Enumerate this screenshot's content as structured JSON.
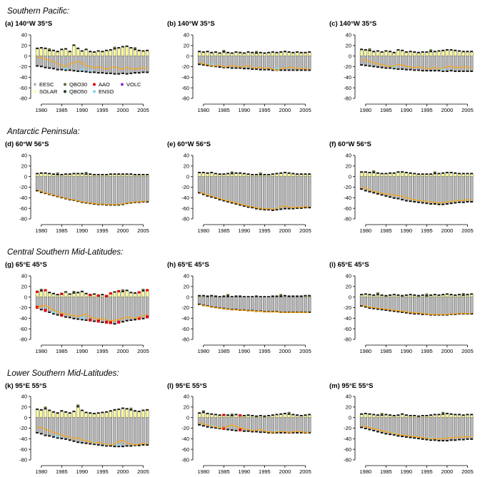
{
  "colors": {
    "EESC": "#b8b8b8",
    "SOLAR": "#ffffa0",
    "QBO30": "#556b2f",
    "QBO50": "#1a3a1a",
    "AAO": "#e00000",
    "ENSO": "#7fd4e6",
    "VOLC": "#8a2be2",
    "cap": "#111111",
    "trend_line": "#ffa500"
  },
  "legend": [
    "EESC",
    "SOLAR",
    "QBO30",
    "QBO50",
    "AAO",
    "ENSO",
    "VOLC"
  ],
  "rows": [
    {
      "title": "Southern Pacific:"
    },
    {
      "title": "Antarctic Peninsula:"
    },
    {
      "title": "Central Southern Mid-Latitudes:"
    },
    {
      "title": "Lower Southern Mid-Latitudes:"
    }
  ],
  "chart_data": [
    {
      "type": "bar",
      "title": "(a) 140°W 35°S",
      "ylim": [
        -80,
        40
      ],
      "x": [
        1979,
        2006
      ],
      "top": [
        16,
        17,
        16,
        12,
        12,
        10,
        14,
        15,
        10,
        22,
        16,
        11,
        14,
        10,
        9,
        11,
        10,
        12,
        13,
        15,
        17,
        19,
        20,
        17,
        14,
        12,
        11,
        12
      ],
      "bottom": [
        -20,
        -21,
        -23,
        -24,
        -25,
        -27,
        -27,
        -28,
        -28,
        -29,
        -30,
        -30,
        -31,
        -32,
        -32,
        -33,
        -33,
        -34,
        -34,
        -35,
        -35,
        -34,
        -35,
        -34,
        -33,
        -33,
        -32,
        -32
      ],
      "orange": [
        -2,
        -3,
        -5,
        -8,
        -10,
        -15,
        -18,
        -20,
        -15,
        -12,
        -10,
        -13,
        -18,
        -20,
        -22,
        -20,
        -22,
        -25,
        -22,
        -20,
        -23,
        -25,
        -21,
        -24,
        -25,
        -23,
        -22,
        -24
      ],
      "extras": {
        "ENSO": [
          7,
          11,
          13
        ],
        "AAO": [],
        "QBO": [
          3,
          19,
          24
        ]
      }
    },
    {
      "type": "bar",
      "title": "(b) 140°W 35°S",
      "ylim": [
        -80,
        40
      ],
      "x": [
        1979,
        2006
      ],
      "top": [
        10,
        9,
        10,
        8,
        9,
        7,
        9,
        8,
        7,
        9,
        8,
        7,
        9,
        8,
        7,
        8,
        7,
        8,
        9,
        8,
        9,
        10,
        9,
        8,
        9,
        8,
        8,
        9
      ],
      "bottom": [
        -17,
        -18,
        -19,
        -20,
        -21,
        -22,
        -23,
        -23,
        -24,
        -24,
        -24,
        -25,
        -25,
        -26,
        -26,
        -27,
        -27,
        -27,
        -28,
        -28,
        -28,
        -28,
        -28,
        -28,
        -28,
        -28,
        -28,
        -28
      ],
      "orange": [
        -12,
        -15,
        -16,
        -18,
        -19,
        -17,
        -21,
        -20,
        -18,
        -19,
        -21,
        -20,
        -18,
        -22,
        -23,
        -21,
        -24,
        -22,
        -25,
        -27,
        -24,
        -23,
        -21,
        -22,
        -24,
        -23,
        -24,
        -25
      ],
      "extras": {
        "ENSO": [
          3,
          19
        ],
        "AAO": [],
        "QBO": [
          6,
          14
        ]
      }
    },
    {
      "type": "bar",
      "title": "(c) 140°W 35°S",
      "ylim": [
        -80,
        40
      ],
      "x": [
        1979,
        2006
      ],
      "top": [
        14,
        13,
        12,
        10,
        11,
        9,
        11,
        10,
        8,
        13,
        12,
        9,
        10,
        9,
        8,
        9,
        9,
        10,
        10,
        11,
        12,
        13,
        13,
        12,
        11,
        10,
        10,
        10
      ],
      "bottom": [
        -18,
        -19,
        -20,
        -21,
        -22,
        -23,
        -24,
        -24,
        -25,
        -26,
        -26,
        -27,
        -27,
        -28,
        -28,
        -29,
        -29,
        -29,
        -29,
        -29,
        -30,
        -30,
        -29,
        -30,
        -30,
        -30,
        -30,
        -30
      ],
      "orange": [
        -5,
        -8,
        -10,
        -12,
        -15,
        -16,
        -18,
        -20,
        -18,
        -16,
        -17,
        -19,
        -21,
        -22,
        -20,
        -22,
        -24,
        -23,
        -21,
        -25,
        -22,
        -20,
        -19,
        -21,
        -22,
        -20,
        -21,
        -23
      ],
      "extras": {
        "ENSO": [
          8,
          20
        ],
        "AAO": [],
        "QBO": [
          2,
          17
        ]
      }
    },
    {
      "type": "bar",
      "title": "(d) 60°W 56°S",
      "ylim": [
        -80,
        40
      ],
      "x": [
        1979,
        2006
      ],
      "top": [
        7,
        8,
        8,
        7,
        6,
        5,
        5,
        6,
        6,
        7,
        7,
        7,
        6,
        6,
        5,
        5,
        5,
        5,
        6,
        6,
        6,
        6,
        6,
        6,
        5,
        5,
        5,
        5
      ],
      "bottom": [
        -28,
        -31,
        -33,
        -35,
        -37,
        -39,
        -41,
        -43,
        -45,
        -46,
        -48,
        -50,
        -51,
        -52,
        -53,
        -54,
        -54,
        -55,
        -55,
        -55,
        -55,
        -54,
        -52,
        -51,
        -50,
        -50,
        -49,
        -49
      ],
      "orange": [
        -25,
        -28,
        -31,
        -33,
        -35,
        -37,
        -39,
        -41,
        -43,
        -44,
        -46,
        -48,
        -49,
        -50,
        -51,
        -52,
        -52,
        -53,
        -53,
        -53,
        -53,
        -52,
        -50,
        -49,
        -48,
        -48,
        -47,
        -47
      ],
      "extras": {
        "ENSO": [],
        "AAO": [],
        "QBO": [
          5,
          12
        ]
      }
    },
    {
      "type": "bar",
      "title": "(e) 60°W 56°S",
      "ylim": [
        -80,
        40
      ],
      "x": [
        1979,
        2006
      ],
      "top": [
        9,
        9,
        8,
        9,
        7,
        6,
        6,
        7,
        7,
        8,
        8,
        7,
        6,
        5,
        5,
        5,
        5,
        5,
        6,
        7,
        8,
        9,
        8,
        7,
        6,
        6,
        6,
        6
      ],
      "bottom": [
        -32,
        -35,
        -38,
        -40,
        -42,
        -45,
        -47,
        -49,
        -51,
        -53,
        -55,
        -57,
        -59,
        -60,
        -62,
        -63,
        -64,
        -64,
        -65,
        -64,
        -63,
        -62,
        -62,
        -62,
        -61,
        -61,
        -60,
        -60
      ],
      "orange": [
        -29,
        -32,
        -35,
        -37,
        -39,
        -42,
        -44,
        -46,
        -48,
        -50,
        -52,
        -54,
        -56,
        -57,
        -59,
        -60,
        -61,
        -61,
        -62,
        -60,
        -57,
        -55,
        -58,
        -59,
        -58,
        -58,
        -57,
        -57
      ],
      "extras": {
        "ENSO": [
          19
        ],
        "AAO": [],
        "QBO": [
          8,
          15
        ]
      }
    },
    {
      "type": "bar",
      "title": "(f) 60°W 56°S",
      "ylim": [
        -80,
        40
      ],
      "x": [
        1979,
        2006
      ],
      "top": [
        10,
        10,
        9,
        9,
        8,
        7,
        7,
        8,
        8,
        10,
        10,
        9,
        8,
        7,
        6,
        6,
        6,
        6,
        7,
        7,
        8,
        9,
        9,
        8,
        7,
        7,
        7,
        7
      ],
      "bottom": [
        -25,
        -28,
        -30,
        -32,
        -34,
        -36,
        -38,
        -40,
        -42,
        -43,
        -45,
        -47,
        -48,
        -49,
        -50,
        -51,
        -52,
        -53,
        -53,
        -54,
        -54,
        -53,
        -52,
        -51,
        -50,
        -50,
        -49,
        -49
      ],
      "orange": [
        -20,
        -22,
        -25,
        -28,
        -30,
        -32,
        -33,
        -34,
        -35,
        -36,
        -37,
        -40,
        -42,
        -44,
        -45,
        -46,
        -47,
        -48,
        -49,
        -50,
        -49,
        -48,
        -47,
        -46,
        -45,
        -45,
        -44,
        -44
      ],
      "extras": {
        "ENSO": [],
        "AAO": [],
        "QBO": [
          3,
          18
        ]
      }
    },
    {
      "type": "bar",
      "title": "(g) 65°E 45°S",
      "ylim": [
        -80,
        40
      ],
      "x": [
        1979,
        2006
      ],
      "top": [
        12,
        13,
        15,
        10,
        8,
        6,
        8,
        11,
        7,
        9,
        10,
        12,
        8,
        6,
        7,
        5,
        6,
        4,
        9,
        11,
        13,
        12,
        14,
        10,
        9,
        11,
        13,
        15
      ],
      "bottom": [
        -22,
        -25,
        -28,
        -30,
        -33,
        -35,
        -37,
        -39,
        -40,
        -42,
        -43,
        -44,
        -45,
        -46,
        -47,
        -48,
        -49,
        -50,
        -51,
        -52,
        -50,
        -48,
        -46,
        -45,
        -44,
        -43,
        -42,
        -40
      ],
      "orange": [
        -20,
        -17,
        -15,
        -20,
        -25,
        -28,
        -30,
        -32,
        -34,
        -35,
        -36,
        -34,
        -32,
        -38,
        -40,
        -42,
        -41,
        -43,
        -45,
        -44,
        -42,
        -40,
        -38,
        -39,
        -40,
        -38,
        -35,
        -33
      ],
      "extras": {
        "ENSO": [
          4,
          11,
          17
        ],
        "AAO": [
          0,
          2,
          6,
          13,
          15,
          17,
          18,
          20,
          25,
          27
        ],
        "QBO": [
          1,
          9,
          21,
          26
        ]
      }
    },
    {
      "type": "bar",
      "title": "(h) 65°E 45°S",
      "ylim": [
        -80,
        40
      ],
      "x": [
        1979,
        2006
      ],
      "top": [
        4,
        4,
        3,
        4,
        3,
        2,
        3,
        3,
        2,
        3,
        3,
        2,
        2,
        2,
        3,
        2,
        2,
        2,
        3,
        3,
        3,
        4,
        3,
        3,
        3,
        3,
        4,
        4
      ],
      "bottom": [
        -15,
        -17,
        -18,
        -20,
        -21,
        -22,
        -23,
        -24,
        -25,
        -25,
        -26,
        -26,
        -27,
        -27,
        -28,
        -28,
        -29,
        -29,
        -29,
        -29,
        -30,
        -30,
        -30,
        -30,
        -30,
        -30,
        -30,
        -30
      ],
      "orange": [
        -14,
        -16,
        -17,
        -19,
        -20,
        -21,
        -22,
        -23,
        -24,
        -24,
        -25,
        -25,
        -26,
        -26,
        -27,
        -27,
        -28,
        -28,
        -28,
        -28,
        -29,
        -29,
        -29,
        -29,
        -29,
        -29,
        -29,
        -29
      ],
      "extras": {
        "ENSO": [],
        "AAO": [],
        "QBO": [
          7,
          20
        ]
      }
    },
    {
      "type": "bar",
      "title": "(i) 65°E 45°S",
      "ylim": [
        -80,
        40
      ],
      "x": [
        1979,
        2006
      ],
      "top": [
        6,
        7,
        6,
        5,
        6,
        5,
        4,
        5,
        6,
        5,
        4,
        5,
        6,
        5,
        4,
        5,
        4,
        5,
        6,
        5,
        6,
        7,
        6,
        5,
        6,
        5,
        6,
        7
      ],
      "bottom": [
        -18,
        -20,
        -22,
        -23,
        -24,
        -25,
        -26,
        -27,
        -28,
        -29,
        -30,
        -31,
        -32,
        -33,
        -33,
        -34,
        -34,
        -35,
        -35,
        -35,
        -35,
        -35,
        -34,
        -34,
        -33,
        -33,
        -33,
        -33
      ],
      "orange": [
        -15,
        -17,
        -19,
        -20,
        -21,
        -22,
        -23,
        -24,
        -25,
        -26,
        -27,
        -28,
        -29,
        -30,
        -30,
        -31,
        -32,
        -33,
        -33,
        -33,
        -33,
        -33,
        -32,
        -32,
        -31,
        -31,
        -31,
        -31
      ],
      "extras": {
        "ENSO": [],
        "AAO": [],
        "QBO": [
          4,
          16,
          25
        ]
      }
    },
    {
      "type": "bar",
      "title": "(k) 95°E 55°S",
      "ylim": [
        -80,
        40
      ],
      "x": [
        1979,
        2006
      ],
      "top": [
        17,
        16,
        18,
        15,
        12,
        10,
        14,
        12,
        10,
        13,
        22,
        15,
        11,
        10,
        9,
        10,
        11,
        12,
        14,
        16,
        17,
        19,
        18,
        16,
        14,
        13,
        15,
        16
      ],
      "bottom": [
        -30,
        -32,
        -35,
        -36,
        -38,
        -40,
        -41,
        -42,
        -44,
        -46,
        -48,
        -49,
        -50,
        -51,
        -52,
        -53,
        -54,
        -55,
        -55,
        -56,
        -56,
        -56,
        -55,
        -55,
        -54,
        -54,
        -53,
        -53
      ],
      "orange": [
        -20,
        -18,
        -22,
        -25,
        -28,
        -30,
        -33,
        -35,
        -37,
        -40,
        -38,
        -42,
        -44,
        -46,
        -48,
        -47,
        -49,
        -50,
        -52,
        -50,
        -45,
        -43,
        -48,
        -50,
        -52,
        -50,
        -49,
        -50
      ],
      "extras": {
        "ENSO": [
          5,
          14,
          17,
          20
        ],
        "AAO": [],
        "QBO": [
          2,
          10,
          23
        ]
      }
    },
    {
      "type": "bar",
      "title": "(l) 95°E 55°S",
      "ylim": [
        -80,
        40
      ],
      "x": [
        1979,
        2006
      ],
      "top": [
        10,
        11,
        9,
        8,
        7,
        6,
        7,
        6,
        5,
        7,
        6,
        5,
        6,
        5,
        4,
        5,
        4,
        5,
        6,
        7,
        8,
        9,
        8,
        7,
        6,
        5,
        6,
        7
      ],
      "bottom": [
        -15,
        -17,
        -19,
        -20,
        -21,
        -22,
        -23,
        -24,
        -25,
        -26,
        -26,
        -27,
        -27,
        -28,
        -28,
        -29,
        -29,
        -30,
        -30,
        -30,
        -30,
        -30,
        -30,
        -30,
        -30,
        -30,
        -30,
        -30
      ],
      "orange": [
        -10,
        -12,
        -14,
        -16,
        -18,
        -20,
        -19,
        -16,
        -14,
        -17,
        -19,
        -21,
        -23,
        -25,
        -24,
        -22,
        -26,
        -27,
        -28,
        -27,
        -26,
        -27,
        -28,
        -27,
        -26,
        -27,
        -28,
        -28
      ],
      "extras": {
        "ENSO": [
          3,
          19
        ],
        "AAO": [
          6,
          10
        ],
        "QBO": [
          1,
          8,
          22
        ]
      }
    },
    {
      "type": "bar",
      "title": "(m) 95°E 55°S",
      "ylim": [
        -80,
        40
      ],
      "x": [
        1979,
        2006
      ],
      "top": [
        8,
        9,
        8,
        7,
        6,
        6,
        7,
        6,
        5,
        6,
        8,
        6,
        5,
        5,
        4,
        5,
        5,
        6,
        7,
        7,
        8,
        9,
        8,
        7,
        7,
        6,
        7,
        7
      ],
      "bottom": [
        -20,
        -22,
        -24,
        -26,
        -28,
        -30,
        -32,
        -33,
        -34,
        -36,
        -37,
        -38,
        -39,
        -40,
        -41,
        -42,
        -43,
        -44,
        -44,
        -45,
        -45,
        -45,
        -44,
        -44,
        -43,
        -43,
        -42,
        -42
      ],
      "orange": [
        -15,
        -17,
        -19,
        -21,
        -23,
        -25,
        -27,
        -28,
        -30,
        -32,
        -33,
        -34,
        -35,
        -36,
        -37,
        -38,
        -39,
        -40,
        -40,
        -41,
        -40,
        -39,
        -38,
        -38,
        -37,
        -37,
        -36,
        -36
      ],
      "extras": {
        "ENSO": [
          8,
          17
        ],
        "AAO": [],
        "QBO": [
          5,
          20
        ]
      }
    }
  ]
}
